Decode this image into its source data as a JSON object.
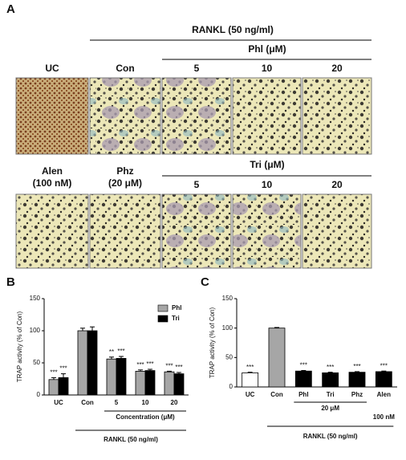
{
  "panel_a": {
    "label": "A",
    "rankl": "RANKL (50 ng/ml)",
    "row1_group": "Phl (μM)",
    "row2_group": "Tri (μM)",
    "row1_labels": [
      "UC",
      "Con",
      "5",
      "10",
      "20"
    ],
    "row2_labels": [
      [
        "Alen",
        "(100 nM)"
      ],
      [
        "Phz",
        "(20 μM)"
      ],
      "5",
      "10",
      "20"
    ]
  },
  "chart_data": [
    {
      "type": "grouped_bar",
      "panel": "B",
      "ylabel": "TRAP activity (% of Con)",
      "categories": [
        "UC",
        "Con",
        "5",
        "10",
        "20"
      ],
      "series": [
        {
          "name": "Phl",
          "color": "#a6a6a6",
          "values": [
            24,
            100,
            56,
            37,
            36
          ],
          "errors": [
            3,
            4,
            3,
            2,
            1
          ],
          "significance": [
            "***",
            null,
            "**",
            "***",
            "***"
          ]
        },
        {
          "name": "Tri",
          "color": "#000000",
          "values": [
            27,
            100,
            57,
            38,
            33
          ],
          "errors": [
            6,
            6,
            3,
            2,
            2
          ],
          "significance": [
            "***",
            null,
            "***",
            "***",
            "***"
          ]
        }
      ],
      "ylim": [
        0,
        150
      ],
      "yticks": [
        0,
        50,
        100,
        150
      ],
      "legend": "upper right",
      "xlabel": "Concentration (μM)",
      "group_label": "RANKL (50 ng/ml)"
    },
    {
      "type": "bar",
      "panel": "C",
      "ylabel": "TRAP activity (% of Con)",
      "categories": [
        "UC",
        "Con",
        "Phl",
        "Tri",
        "Phz",
        "Alen"
      ],
      "values": [
        24,
        100,
        27,
        24,
        25,
        26
      ],
      "errors": [
        1,
        1,
        1,
        1,
        1,
        1
      ],
      "colors": [
        "#ffffff",
        "#a6a6a6",
        "#000000",
        "#000000",
        "#000000",
        "#000000"
      ],
      "significance": [
        "***",
        null,
        "***",
        "***",
        "***",
        "***"
      ],
      "ylim": [
        0,
        150
      ],
      "yticks": [
        0,
        50,
        100,
        150
      ],
      "dose_labels": [
        "20 μM",
        "100 nM"
      ],
      "group_label": "RANKL (50 ng/ml)"
    }
  ]
}
